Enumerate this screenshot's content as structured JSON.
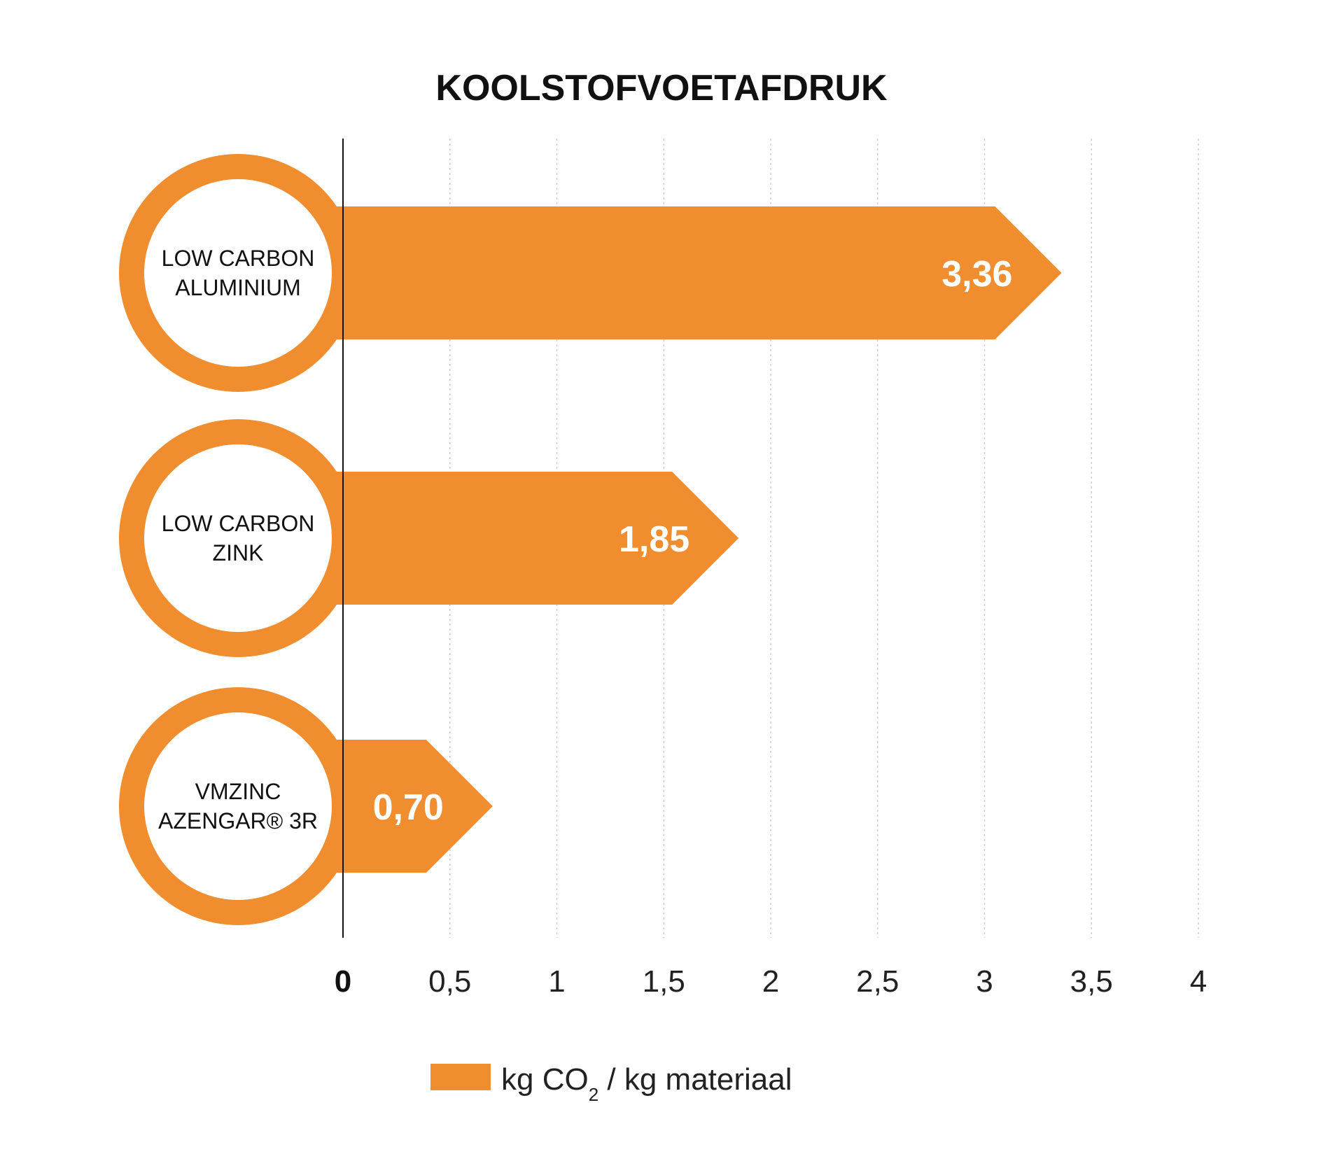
{
  "chart_data": {
    "type": "bar",
    "orientation": "horizontal",
    "title": "KOOLSTOFVOETAFDRUK",
    "categories": [
      [
        "LOW CARBON",
        "ALUMINIUM"
      ],
      [
        "LOW CARBON",
        "ZINK"
      ],
      [
        "VMZINC",
        "AZENGAR® 3R"
      ]
    ],
    "values": [
      3.36,
      1.85,
      0.7
    ],
    "value_labels": [
      "3,36",
      "1,85",
      "0,70"
    ],
    "xlim": [
      0,
      4
    ],
    "x_ticks": [
      0,
      0.5,
      1,
      1.5,
      2,
      2.5,
      3,
      3.5,
      4
    ],
    "x_tick_labels": [
      "0",
      "0,5",
      "1",
      "1,5",
      "2",
      "2,5",
      "3",
      "3,5",
      "4"
    ],
    "grid": "vertical dotted",
    "legend": {
      "placement": "bottom-center",
      "prefix": "kg CO",
      "subscript": "2",
      "suffix": " / kg materiaal"
    },
    "colors": {
      "bar": "#F08D2E",
      "axis": "#111111",
      "grid": "#CFCFCF",
      "circle_fill": "#FFFFFF"
    }
  }
}
